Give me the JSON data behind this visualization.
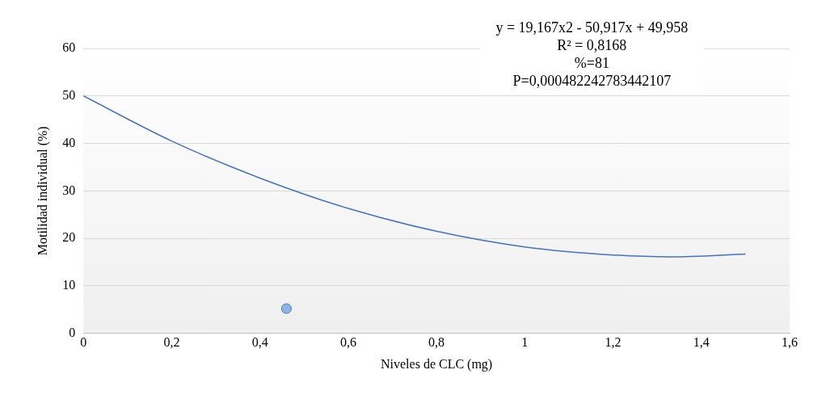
{
  "chart_data": {
    "type": "line",
    "xlabel": "Niveles de CLC (mg)",
    "ylabel": "Motilidad individual (%)",
    "annotations": [
      "y = 19,167x2 - 50,917x + 49,958",
      "R² = 0,8168",
      "%=81",
      "P=0,000482242783442107"
    ],
    "xlim": [
      0,
      1.6
    ],
    "xticks": [
      {
        "value": 0,
        "label": "0"
      },
      {
        "value": 0.2,
        "label": "0,2"
      },
      {
        "value": 0.4,
        "label": "0,4"
      },
      {
        "value": 0.6,
        "label": "0,6"
      },
      {
        "value": 0.8,
        "label": "0,8"
      },
      {
        "value": 1,
        "label": "1"
      },
      {
        "value": 1.2,
        "label": "1,2"
      },
      {
        "value": 1.4,
        "label": "1,4"
      },
      {
        "value": 1.6,
        "label": "1,6"
      }
    ],
    "ylim": [
      0,
      60
    ],
    "yticks": [
      0,
      10,
      20,
      30,
      40,
      50,
      60
    ],
    "grid": "y",
    "series": [
      {
        "color": "#4472c4",
        "marker": "none",
        "x": [
          0,
          0.2,
          0.4,
          0.6,
          0.8,
          1,
          1.2,
          1.33,
          1.5
        ],
        "values": [
          50,
          40.5,
          32.7,
          26.3,
          21.5,
          18.2,
          16.5,
          16.1,
          16.7
        ]
      },
      {
        "type": "scatter",
        "color": "#8eb4e3",
        "marker": "circle",
        "x": [
          0.46,
          null,
          null
        ],
        "values": [
          5.2,
          null,
          null
        ]
      }
    ]
  }
}
